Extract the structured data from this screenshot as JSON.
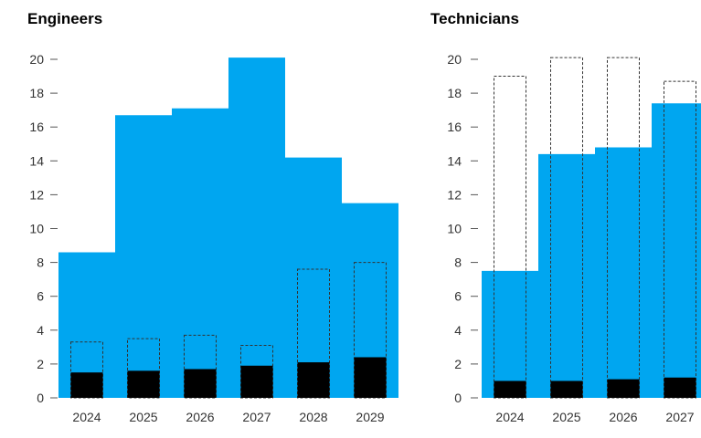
{
  "chart_data": [
    {
      "type": "bar",
      "title": "Engineers",
      "categories": [
        "2024",
        "2025",
        "2026",
        "2027",
        "2028",
        "2029"
      ],
      "ylim": [
        0,
        20
      ],
      "yticks": [
        0,
        2,
        4,
        6,
        8,
        10,
        12,
        14,
        16,
        18,
        20
      ],
      "grid": false,
      "colors": {
        "area": "#00A6F0",
        "inner": "#000000",
        "outline": "#333333"
      },
      "series": [
        {
          "style": "step-area",
          "values": [
            8.6,
            16.7,
            17.1,
            20.1,
            14.2,
            11.5
          ]
        },
        {
          "style": "dashed-outline-bar",
          "values": [
            3.3,
            3.5,
            3.7,
            3.1,
            7.6,
            8.0
          ]
        },
        {
          "style": "black-bar",
          "values": [
            1.5,
            1.6,
            1.7,
            1.9,
            2.1,
            2.4
          ]
        }
      ]
    },
    {
      "type": "bar",
      "title": "Technicians",
      "categories": [
        "2024",
        "2025",
        "2026",
        "2027"
      ],
      "ylim": [
        0,
        20
      ],
      "yticks": [
        0,
        2,
        4,
        6,
        8,
        10,
        12,
        14,
        16,
        18,
        20
      ],
      "grid": false,
      "colors": {
        "area": "#00A6F0",
        "inner": "#000000",
        "outline": "#333333"
      },
      "series": [
        {
          "style": "step-area",
          "values": [
            7.5,
            14.4,
            14.8,
            17.4
          ]
        },
        {
          "style": "dashed-outline-bar",
          "values": [
            19.0,
            20.1,
            20.1,
            18.7
          ]
        },
        {
          "style": "black-bar",
          "values": [
            1.0,
            1.0,
            1.1,
            1.2
          ]
        }
      ]
    }
  ]
}
